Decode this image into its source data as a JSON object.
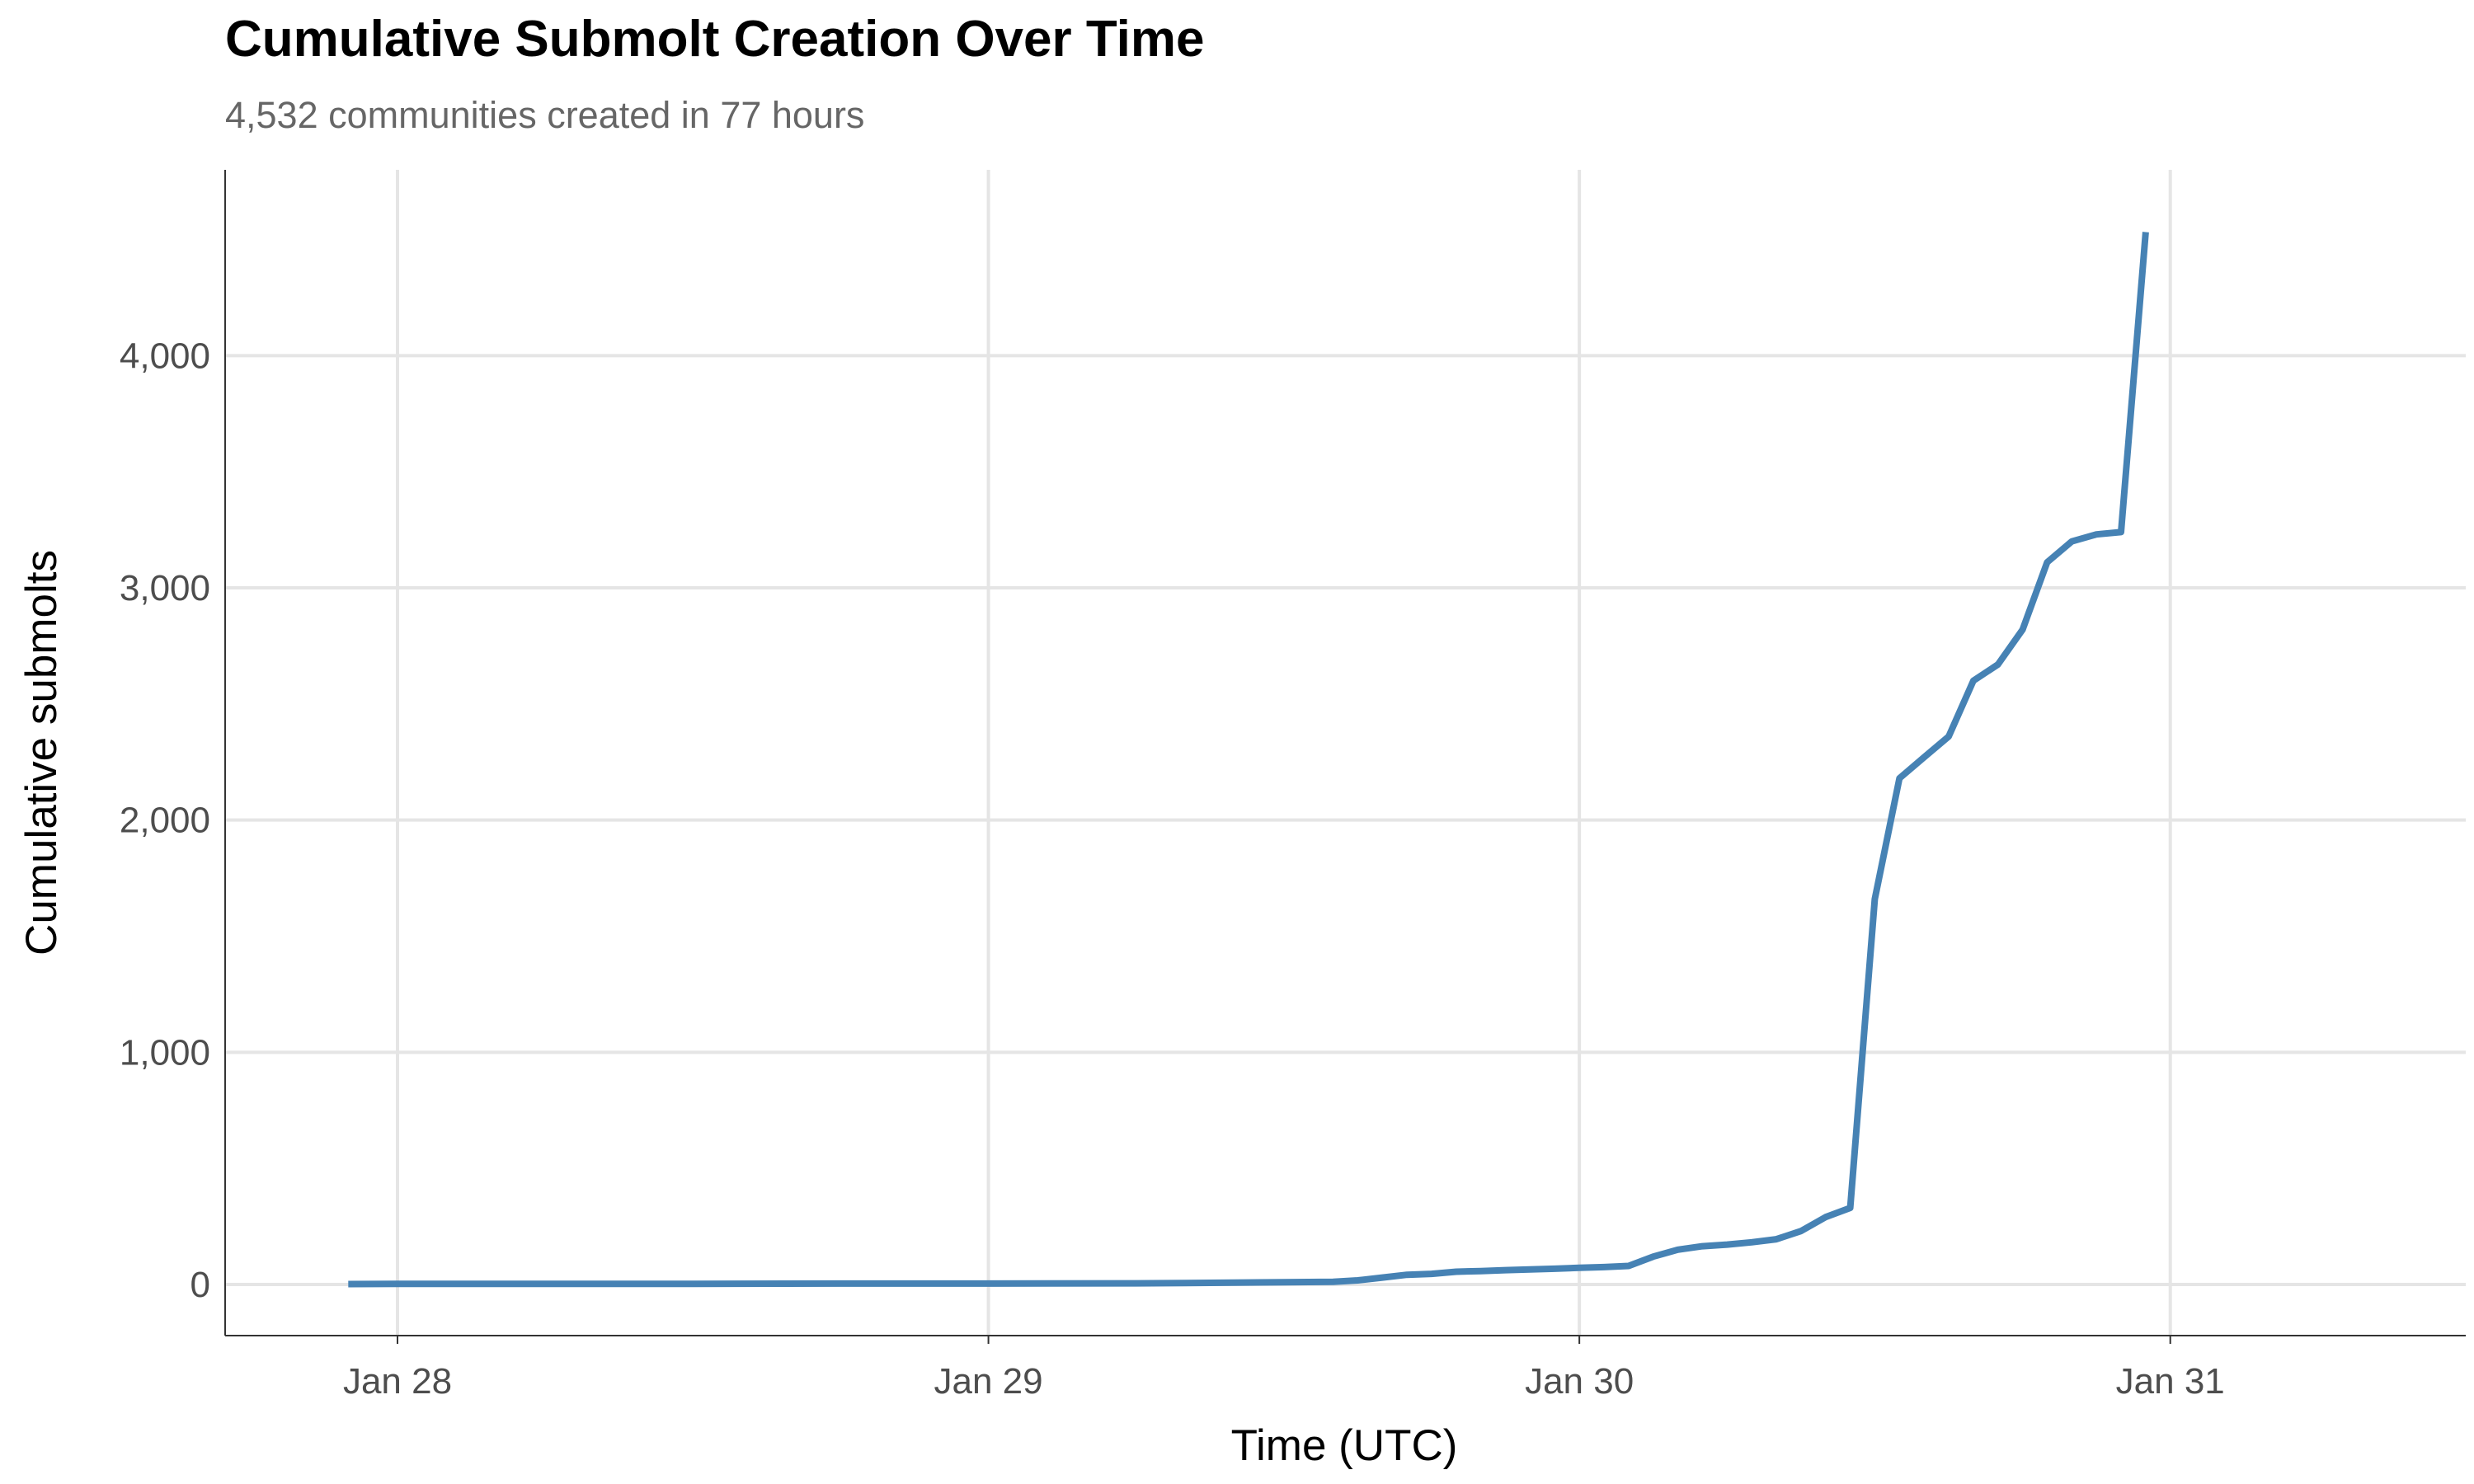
{
  "chart_data": {
    "type": "line",
    "title": "Cumulative Submolt Creation Over Time",
    "subtitle": "4,532 communities created in 77 hours",
    "xlabel": "Time (UTC)",
    "ylabel": "Cumulative submolts",
    "x_ticks": [
      "Jan 28",
      "Jan 29",
      "Jan 30",
      "Jan 31"
    ],
    "y_ticks": [
      "0",
      "1,000",
      "2,000",
      "3,000",
      "4,000"
    ],
    "y_tick_values": [
      0,
      1000,
      2000,
      3000,
      4000
    ],
    "xlim": [
      "2026-01-27T17:00",
      "2026-01-31T12:00"
    ],
    "ylim": [
      -220,
      4800
    ],
    "grid": true,
    "line_color": "#4682B4",
    "series": [
      {
        "x": [
          "2026-01-27T22:00",
          "2026-01-28T00:00",
          "2026-01-28T06:00",
          "2026-01-28T12:00",
          "2026-01-28T18:00",
          "2026-01-29T00:00",
          "2026-01-29T06:00",
          "2026-01-29T08:00",
          "2026-01-29T10:00",
          "2026-01-29T12:00",
          "2026-01-29T14:00",
          "2026-01-29T15:00",
          "2026-01-29T16:00",
          "2026-01-29T17:00",
          "2026-01-29T18:00",
          "2026-01-29T19:00",
          "2026-01-29T20:00",
          "2026-01-29T21:00",
          "2026-01-29T22:00",
          "2026-01-29T23:00",
          "2026-01-30T00:00",
          "2026-01-30T01:00",
          "2026-01-30T02:00",
          "2026-01-30T03:00",
          "2026-01-30T04:00",
          "2026-01-30T05:00",
          "2026-01-30T06:00",
          "2026-01-30T07:00",
          "2026-01-30T08:00",
          "2026-01-30T09:00",
          "2026-01-30T10:00",
          "2026-01-30T11:00",
          "2026-01-30T12:00",
          "2026-01-30T13:00",
          "2026-01-30T14:00",
          "2026-01-30T15:00",
          "2026-01-30T16:00",
          "2026-01-30T17:00",
          "2026-01-30T18:00",
          "2026-01-30T19:00",
          "2026-01-30T20:00",
          "2026-01-30T21:00",
          "2026-01-30T22:00",
          "2026-01-30T23:00"
        ],
        "values": [
          2,
          3,
          3,
          3,
          4,
          4,
          5,
          6,
          8,
          10,
          12,
          18,
          30,
          42,
          46,
          55,
          58,
          62,
          65,
          68,
          72,
          75,
          80,
          120,
          150,
          165,
          172,
          182,
          195,
          230,
          290,
          330,
          1660,
          2180,
          2270,
          2360,
          2600,
          2670,
          2820,
          3110,
          3200,
          3230,
          3240,
          4532
        ]
      }
    ]
  }
}
